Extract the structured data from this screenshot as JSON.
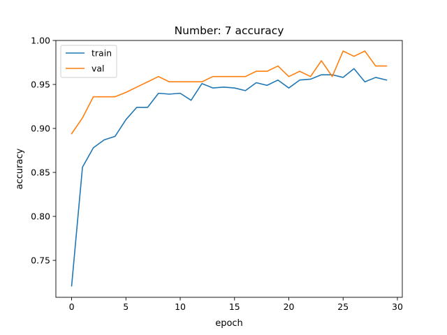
{
  "chart_data": {
    "type": "line",
    "title": "Number: 7 accuracy",
    "xlabel": "epoch",
    "ylabel": "accuracy",
    "xlim": [
      -1.45,
      30.45
    ],
    "ylim": [
      0.708,
      1.0
    ],
    "xticks": [
      0,
      5,
      10,
      15,
      20,
      25,
      30
    ],
    "yticks": [
      0.75,
      0.8,
      0.85,
      0.9,
      0.95,
      1.0
    ],
    "grid": false,
    "legend": "top-left",
    "series": [
      {
        "name": "train",
        "color": "#1f77b4",
        "x": [
          0,
          1,
          2,
          3,
          4,
          5,
          6,
          7,
          8,
          9,
          10,
          11,
          12,
          13,
          14,
          15,
          16,
          17,
          18,
          19,
          20,
          21,
          22,
          23,
          24,
          25,
          26,
          27,
          28,
          29
        ],
        "values": [
          0.721,
          0.856,
          0.878,
          0.887,
          0.891,
          0.91,
          0.924,
          0.924,
          0.94,
          0.939,
          0.94,
          0.932,
          0.951,
          0.946,
          0.947,
          0.946,
          0.943,
          0.952,
          0.949,
          0.955,
          0.946,
          0.955,
          0.956,
          0.961,
          0.961,
          0.958,
          0.968,
          0.953,
          0.958,
          0.955
        ]
      },
      {
        "name": "val",
        "color": "#ff7f0e",
        "x": [
          0,
          1,
          2,
          3,
          4,
          5,
          6,
          7,
          8,
          9,
          10,
          11,
          12,
          13,
          14,
          15,
          16,
          17,
          18,
          19,
          20,
          21,
          22,
          23,
          24,
          25,
          26,
          27,
          28,
          29
        ],
        "values": [
          0.894,
          0.912,
          0.936,
          0.936,
          0.936,
          0.941,
          0.947,
          0.953,
          0.959,
          0.953,
          0.953,
          0.953,
          0.953,
          0.959,
          0.959,
          0.959,
          0.959,
          0.965,
          0.965,
          0.971,
          0.959,
          0.965,
          0.959,
          0.977,
          0.959,
          0.988,
          0.982,
          0.988,
          0.971,
          0.971
        ]
      }
    ]
  }
}
